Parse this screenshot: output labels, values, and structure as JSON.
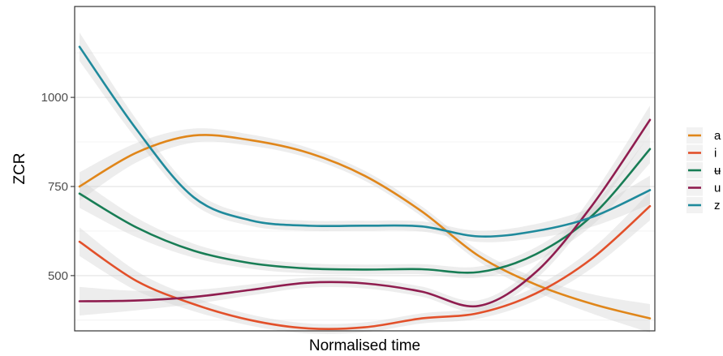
{
  "chart_data": {
    "type": "line",
    "title": "",
    "xlabel": "Normalised time",
    "ylabel": "ZCR",
    "xlim": [
      0,
      1
    ],
    "ylim": [
      345,
      1255
    ],
    "y_ticks": [
      500,
      750,
      1000
    ],
    "y_tick_labels": [
      "500",
      "750",
      "1000"
    ],
    "x_tick_labels": [],
    "grid": true,
    "confidence_band": true,
    "legend_position": "right",
    "x": [
      0.0,
      0.1,
      0.2,
      0.3,
      0.4,
      0.5,
      0.6,
      0.7,
      0.8,
      0.9,
      1.0
    ],
    "series": [
      {
        "name": "a",
        "color": "#E0861A",
        "values": [
          750,
          845,
          893,
          880,
          845,
          780,
          680,
          555,
          475,
          420,
          380
        ]
      },
      {
        "name": "i",
        "color": "#E2502A",
        "values": [
          595,
          485,
          420,
          375,
          352,
          355,
          380,
          395,
          450,
          550,
          695
        ]
      },
      {
        "name": "ʉ",
        "color": "#187D55",
        "values": [
          730,
          635,
          570,
          535,
          520,
          517,
          518,
          510,
          560,
          670,
          855
        ]
      },
      {
        "name": "u",
        "color": "#8F1D4F",
        "values": [
          428,
          430,
          440,
          460,
          480,
          478,
          455,
          415,
          510,
          700,
          937
        ]
      },
      {
        "name": "z",
        "color": "#1F8A9C",
        "values": [
          1142,
          910,
          720,
          655,
          640,
          640,
          638,
          610,
          625,
          665,
          740
        ]
      }
    ]
  }
}
